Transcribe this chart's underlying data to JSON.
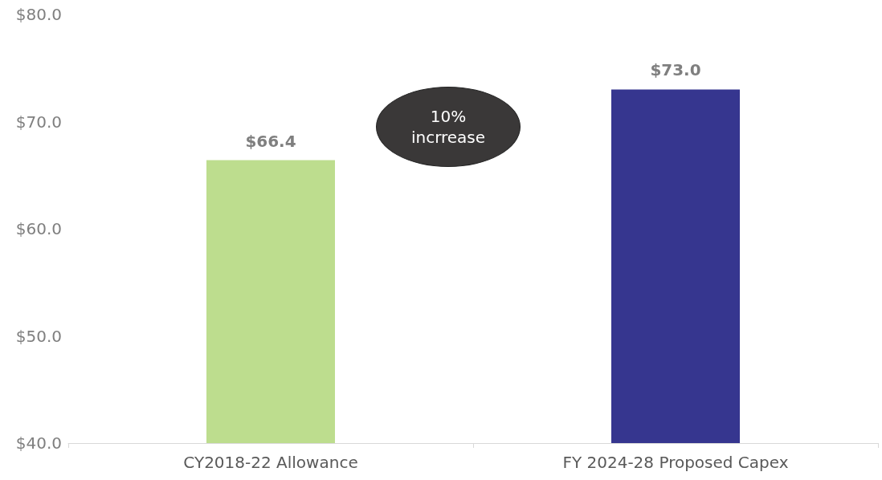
{
  "chart_data": {
    "type": "bar",
    "categories": [
      "CY2018-22 Allowance",
      "FY 2024-28 Proposed Capex"
    ],
    "values": [
      66.4,
      73.0
    ],
    "colors": [
      "#bddd8e",
      "#36368f"
    ],
    "value_labels": [
      "$66.4",
      "$73.0"
    ],
    "ylim": [
      40,
      80
    ],
    "yticks": [
      {
        "value": 40,
        "label": "$40.0"
      },
      {
        "value": 50,
        "label": "$50.0"
      },
      {
        "value": 60,
        "label": "$60.0"
      },
      {
        "value": 70,
        "label": "$70.0"
      },
      {
        "value": 80,
        "label": "$80.0"
      }
    ],
    "grid": false,
    "annotations": [
      "10% incrrease"
    ]
  }
}
